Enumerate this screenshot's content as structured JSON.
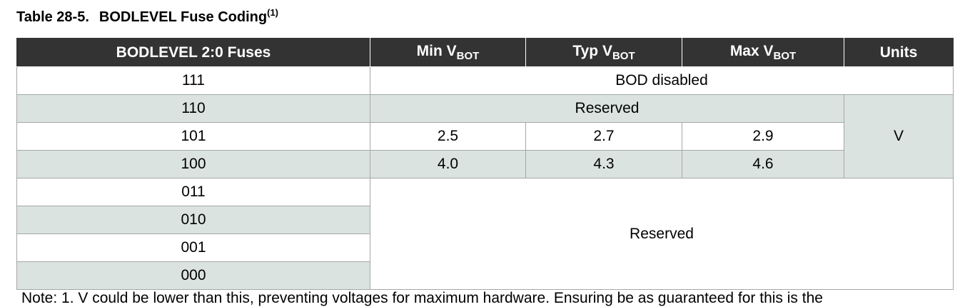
{
  "caption": {
    "number": "Table 28-5.",
    "title": "BODLEVEL Fuse Coding",
    "footnote_ref": "(1)"
  },
  "table": {
    "headers": {
      "fuses": "BODLEVEL 2:0 Fuses",
      "min_prefix": "Min V",
      "typ_prefix": "Typ V",
      "max_prefix": "Max V",
      "subscript": "BOT",
      "units": "Units"
    },
    "rows": [
      {
        "fuse": "111",
        "text": "BOD disabled"
      },
      {
        "fuse": "110",
        "text": "Reserved",
        "unit": "V"
      },
      {
        "fuse": "101",
        "min": "2.5",
        "typ": "2.7",
        "max": "2.9"
      },
      {
        "fuse": "100",
        "min": "4.0",
        "typ": "4.3",
        "max": "4.6"
      },
      {
        "fuse": "011",
        "text": "Reserved"
      },
      {
        "fuse": "010"
      },
      {
        "fuse": "001"
      },
      {
        "fuse": "000"
      }
    ]
  },
  "note": {
    "text": "Note:    1.   V    could be lower than this, preventing voltages for maximum hardware. Ensuring be as guaranteed for this is the"
  },
  "colors": {
    "header_bg": "#333333",
    "row_shade": "#dbe3e1",
    "border": "#a6a6a6"
  }
}
